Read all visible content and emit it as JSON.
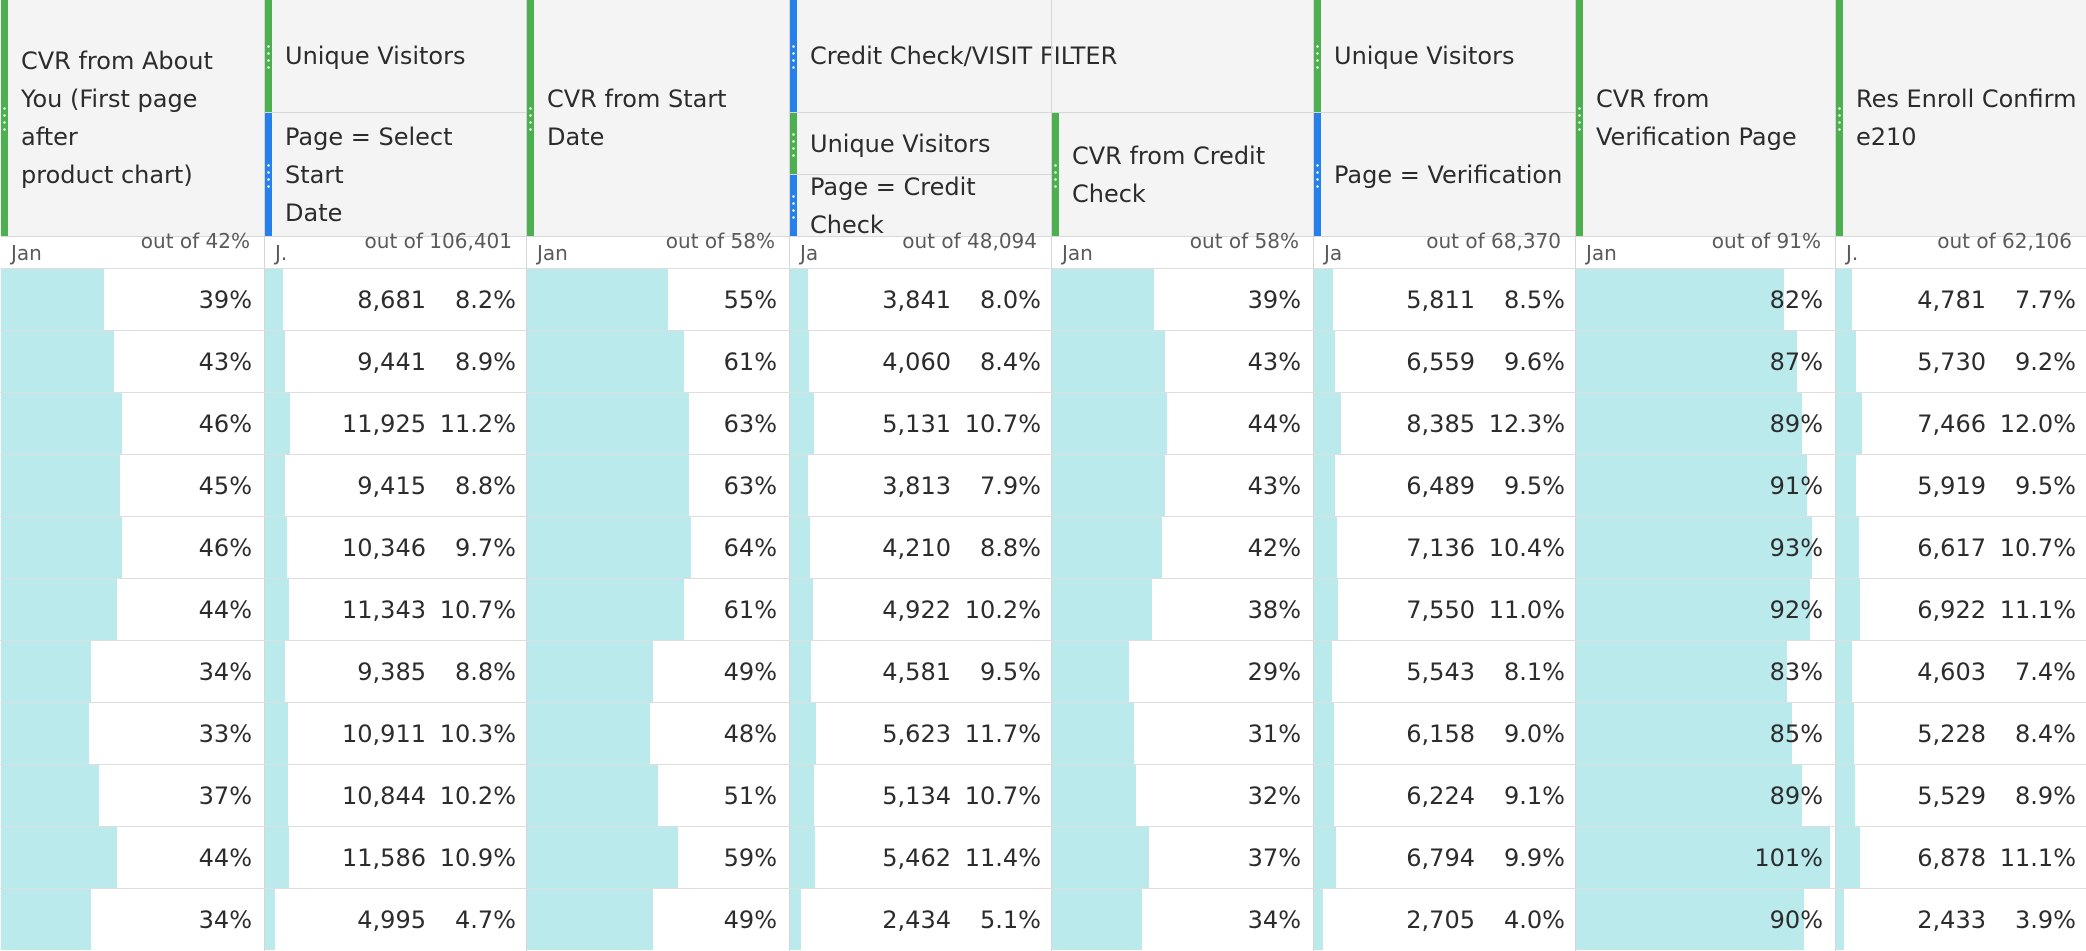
{
  "colors": {
    "metric": "#4caf50",
    "segment": "#2680eb",
    "bar": "#bbeaec"
  },
  "columns": [
    {
      "header": [
        "CVR from About",
        "You (First page after",
        "product chart)"
      ],
      "sub_left": "Jan",
      "sub_right": "out of 42%",
      "kind": "percent"
    },
    {
      "header_top": "Unique Visitors",
      "header_bottom": [
        "Page = Select Start",
        "Date"
      ],
      "sub_left": "J.",
      "sub_right": "out of 106,401",
      "kind": "count"
    },
    {
      "header": [
        "CVR from Start",
        "Date"
      ],
      "sub_left": "Jan",
      "sub_right": "out of 58%",
      "kind": "percent"
    },
    {
      "header_top": "Credit Check/VISIT FILTER",
      "header_bottom_a": "Unique Visitors",
      "header_bottom_b": "Page = Credit Check",
      "sub_left": "Ja",
      "sub_right": "out of 48,094",
      "kind": "count"
    },
    {
      "header": [
        "CVR from Credit",
        "Check"
      ],
      "sub_left": "Jan",
      "sub_right": "out of 58%",
      "kind": "percent"
    },
    {
      "header_top": "Unique Visitors",
      "header_bottom": [
        "Page = Verification"
      ],
      "sub_left": "Ja",
      "sub_right": "out of 68,370",
      "kind": "count"
    },
    {
      "header": [
        "CVR from",
        "Verification Page"
      ],
      "sub_left": "Jan",
      "sub_right": "out of 91%",
      "kind": "percent"
    },
    {
      "header": [
        "Res Enroll Confirm",
        "e210"
      ],
      "sub_left": "J.",
      "sub_right": "out of 62,106",
      "kind": "count"
    }
  ],
  "rows": [
    [
      {
        "v": "39%",
        "f": 0.4
      },
      {
        "v": "8,681",
        "p": "8.2%",
        "f": 0.082
      },
      {
        "v": "55%",
        "f": 0.55
      },
      {
        "v": "3,841",
        "p": "8.0%",
        "f": 0.08
      },
      {
        "v": "39%",
        "f": 0.4
      },
      {
        "v": "5,811",
        "p": "8.5%",
        "f": 0.085
      },
      {
        "v": "82%",
        "f": 0.82
      },
      {
        "v": "4,781",
        "p": "7.7%",
        "f": 0.077
      }
    ],
    [
      {
        "v": "43%",
        "f": 0.44
      },
      {
        "v": "9,441",
        "p": "8.9%",
        "f": 0.089
      },
      {
        "v": "61%",
        "f": 0.61
      },
      {
        "v": "4,060",
        "p": "8.4%",
        "f": 0.084
      },
      {
        "v": "43%",
        "f": 0.44
      },
      {
        "v": "6,559",
        "p": "9.6%",
        "f": 0.096
      },
      {
        "v": "87%",
        "f": 0.87
      },
      {
        "v": "5,730",
        "p": "9.2%",
        "f": 0.092
      }
    ],
    [
      {
        "v": "46%",
        "f": 0.47
      },
      {
        "v": "11,925",
        "p": "11.2%",
        "f": 0.112
      },
      {
        "v": "63%",
        "f": 0.63
      },
      {
        "v": "5,131",
        "p": "10.7%",
        "f": 0.107
      },
      {
        "v": "44%",
        "f": 0.45
      },
      {
        "v": "8,385",
        "p": "12.3%",
        "f": 0.123
      },
      {
        "v": "89%",
        "f": 0.89
      },
      {
        "v": "7,466",
        "p": "12.0%",
        "f": 0.12
      }
    ],
    [
      {
        "v": "45%",
        "f": 0.46
      },
      {
        "v": "9,415",
        "p": "8.8%",
        "f": 0.088
      },
      {
        "v": "63%",
        "f": 0.63
      },
      {
        "v": "3,813",
        "p": "7.9%",
        "f": 0.079
      },
      {
        "v": "43%",
        "f": 0.44
      },
      {
        "v": "6,489",
        "p": "9.5%",
        "f": 0.095
      },
      {
        "v": "91%",
        "f": 0.91
      },
      {
        "v": "5,919",
        "p": "9.5%",
        "f": 0.095
      }
    ],
    [
      {
        "v": "46%",
        "f": 0.47
      },
      {
        "v": "10,346",
        "p": "9.7%",
        "f": 0.097
      },
      {
        "v": "64%",
        "f": 0.64
      },
      {
        "v": "4,210",
        "p": "8.8%",
        "f": 0.088
      },
      {
        "v": "42%",
        "f": 0.43
      },
      {
        "v": "7,136",
        "p": "10.4%",
        "f": 0.104
      },
      {
        "v": "93%",
        "f": 0.93
      },
      {
        "v": "6,617",
        "p": "10.7%",
        "f": 0.107
      }
    ],
    [
      {
        "v": "44%",
        "f": 0.45
      },
      {
        "v": "11,343",
        "p": "10.7%",
        "f": 0.107
      },
      {
        "v": "61%",
        "f": 0.61
      },
      {
        "v": "4,922",
        "p": "10.2%",
        "f": 0.102
      },
      {
        "v": "38%",
        "f": 0.39
      },
      {
        "v": "7,550",
        "p": "11.0%",
        "f": 0.11
      },
      {
        "v": "92%",
        "f": 0.92
      },
      {
        "v": "6,922",
        "p": "11.1%",
        "f": 0.111
      }
    ],
    [
      {
        "v": "34%",
        "f": 0.35
      },
      {
        "v": "9,385",
        "p": "8.8%",
        "f": 0.088
      },
      {
        "v": "49%",
        "f": 0.49
      },
      {
        "v": "4,581",
        "p": "9.5%",
        "f": 0.095
      },
      {
        "v": "29%",
        "f": 0.3
      },
      {
        "v": "5,543",
        "p": "8.1%",
        "f": 0.081
      },
      {
        "v": "83%",
        "f": 0.83
      },
      {
        "v": "4,603",
        "p": "7.4%",
        "f": 0.074
      }
    ],
    [
      {
        "v": "33%",
        "f": 0.34
      },
      {
        "v": "10,911",
        "p": "10.3%",
        "f": 0.103
      },
      {
        "v": "48%",
        "f": 0.48
      },
      {
        "v": "5,623",
        "p": "11.7%",
        "f": 0.117
      },
      {
        "v": "31%",
        "f": 0.32
      },
      {
        "v": "6,158",
        "p": "9.0%",
        "f": 0.09
      },
      {
        "v": "85%",
        "f": 0.85
      },
      {
        "v": "5,228",
        "p": "8.4%",
        "f": 0.084
      }
    ],
    [
      {
        "v": "37%",
        "f": 0.38
      },
      {
        "v": "10,844",
        "p": "10.2%",
        "f": 0.102
      },
      {
        "v": "51%",
        "f": 0.51
      },
      {
        "v": "5,134",
        "p": "10.7%",
        "f": 0.107
      },
      {
        "v": "32%",
        "f": 0.33
      },
      {
        "v": "6,224",
        "p": "9.1%",
        "f": 0.091
      },
      {
        "v": "89%",
        "f": 0.89
      },
      {
        "v": "5,529",
        "p": "8.9%",
        "f": 0.089
      }
    ],
    [
      {
        "v": "44%",
        "f": 0.45
      },
      {
        "v": "11,586",
        "p": "10.9%",
        "f": 0.109
      },
      {
        "v": "59%",
        "f": 0.59
      },
      {
        "v": "5,462",
        "p": "11.4%",
        "f": 0.114
      },
      {
        "v": "37%",
        "f": 0.38
      },
      {
        "v": "6,794",
        "p": "9.9%",
        "f": 0.099
      },
      {
        "v": "101%",
        "f": 1.0
      },
      {
        "v": "6,878",
        "p": "11.1%",
        "f": 0.111
      }
    ],
    [
      {
        "v": "34%",
        "f": 0.35
      },
      {
        "v": "4,995",
        "p": "4.7%",
        "f": 0.047
      },
      {
        "v": "49%",
        "f": 0.49
      },
      {
        "v": "2,434",
        "p": "5.1%",
        "f": 0.051
      },
      {
        "v": "34%",
        "f": 0.35
      },
      {
        "v": "2,705",
        "p": "4.0%",
        "f": 0.04
      },
      {
        "v": "90%",
        "f": 0.9
      },
      {
        "v": "2,433",
        "p": "3.9%",
        "f": 0.039
      }
    ]
  ]
}
